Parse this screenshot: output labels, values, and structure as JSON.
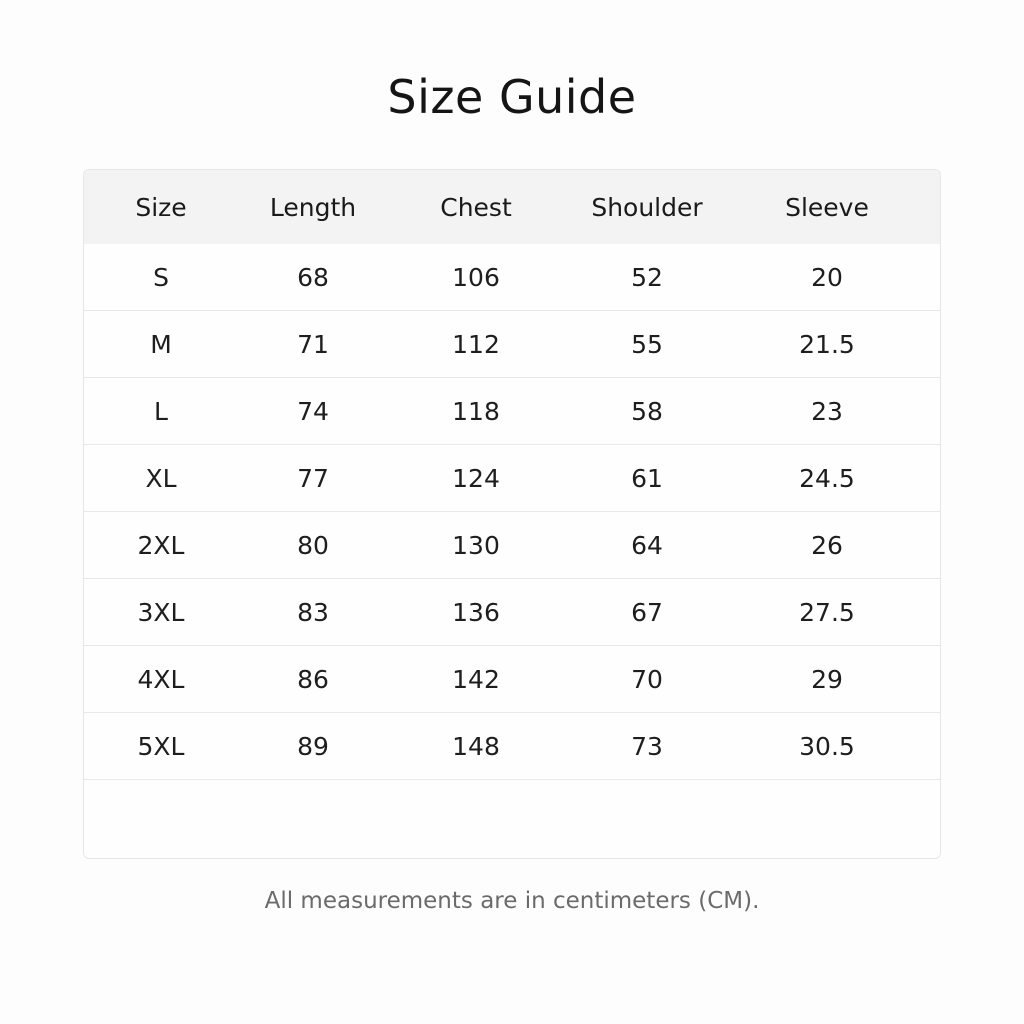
{
  "title": "Size Guide",
  "table": {
    "headers": [
      "Size",
      "Length",
      "Chest",
      "Shoulder",
      "Sleeve"
    ],
    "rows": [
      [
        "S",
        "68",
        "106",
        "52",
        "20"
      ],
      [
        "M",
        "71",
        "112",
        "55",
        "21.5"
      ],
      [
        "L",
        "74",
        "118",
        "58",
        "23"
      ],
      [
        "XL",
        "77",
        "124",
        "61",
        "24.5"
      ],
      [
        "2XL",
        "80",
        "130",
        "64",
        "26"
      ],
      [
        "3XL",
        "83",
        "136",
        "67",
        "27.5"
      ],
      [
        "4XL",
        "86",
        "142",
        "70",
        "29"
      ],
      [
        "5XL",
        "89",
        "148",
        "73",
        "30.5"
      ]
    ]
  },
  "note": "All measurements are in centimeters (CM)."
}
